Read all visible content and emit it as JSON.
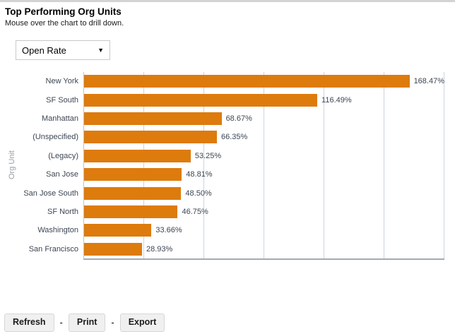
{
  "page": {
    "title": "Top Performing Org Units",
    "subtitle": "Mouse over the chart to drill down."
  },
  "metric_select": {
    "value": "Open Rate"
  },
  "chart_data": {
    "type": "bar",
    "orientation": "horizontal",
    "title": "",
    "xlabel": "",
    "ylabel": "Org Unit",
    "categories": [
      "New York",
      "SF South",
      "Manhattan",
      "(Unspecified)",
      "(Legacy)",
      "San Jose",
      "San Jose South",
      "SF North",
      "Washington",
      "San Francisco"
    ],
    "values": [
      168.47,
      116.49,
      68.67,
      66.35,
      53.25,
      48.81,
      48.5,
      46.75,
      33.66,
      28.93
    ],
    "value_labels": [
      "168.47%",
      "116.49%",
      "68.67%",
      "66.35%",
      "53.25%",
      "48.81%",
      "48.50%",
      "46.75%",
      "33.66%",
      "28.93%"
    ],
    "xlim": [
      0,
      180
    ],
    "grid_step_percent": 30,
    "grid": true,
    "legend": false,
    "bar_color": "#dd7b0d",
    "gridline_color": "#cbd5de"
  },
  "footer": {
    "separator": "-",
    "buttons": [
      {
        "label": "Refresh"
      },
      {
        "label": "Print"
      },
      {
        "label": "Export"
      }
    ]
  }
}
